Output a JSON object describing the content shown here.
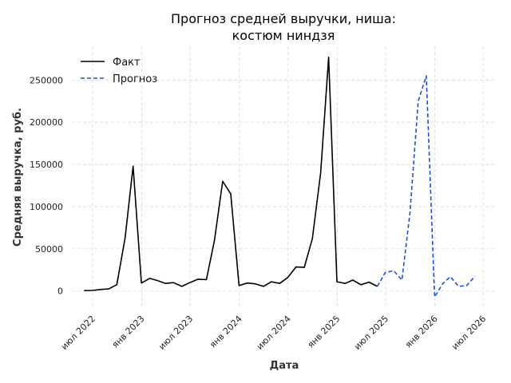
{
  "chart_data": {
    "type": "line",
    "title_lines": [
      "Прогноз средней выручки, ниша:",
      "костюм ниндзя"
    ],
    "xlabel": "Дата",
    "ylabel": "Средняя выручка, руб.",
    "x_range": [
      "2022-04-15",
      "2026-08-20"
    ],
    "ylim": [
      -22000,
      290000
    ],
    "yticks": [
      0,
      50000,
      100000,
      150000,
      200000,
      250000
    ],
    "ytick_labels": [
      "0",
      "50000",
      "100000",
      "150000",
      "200000",
      "250000"
    ],
    "xticks": [
      {
        "date": "2022-07-01",
        "label": "июл 2022"
      },
      {
        "date": "2023-01-01",
        "label": "янв 2023"
      },
      {
        "date": "2023-07-01",
        "label": "июл 2023"
      },
      {
        "date": "2024-01-01",
        "label": "янв 2024"
      },
      {
        "date": "2024-07-01",
        "label": "июл 2024"
      },
      {
        "date": "2025-01-01",
        "label": "янв 2025"
      },
      {
        "date": "2025-07-01",
        "label": "июл 2025"
      },
      {
        "date": "2026-01-01",
        "label": "янв 2026"
      },
      {
        "date": "2026-07-01",
        "label": "июл 2026"
      }
    ],
    "grid": true,
    "legend_position": "top-left",
    "series": [
      {
        "name": "Факт",
        "color": "#000000",
        "style": "solid",
        "points": [
          [
            "2022-05-31",
            500
          ],
          [
            "2022-06-30",
            700
          ],
          [
            "2022-07-31",
            1800
          ],
          [
            "2022-08-31",
            2500
          ],
          [
            "2022-09-30",
            7500
          ],
          [
            "2022-10-31",
            63000
          ],
          [
            "2022-11-30",
            148000
          ],
          [
            "2022-12-31",
            9500
          ],
          [
            "2023-01-31",
            15000
          ],
          [
            "2023-02-28",
            12500
          ],
          [
            "2023-03-31",
            9000
          ],
          [
            "2023-04-30",
            10000
          ],
          [
            "2023-05-31",
            5500
          ],
          [
            "2023-06-30",
            10000
          ],
          [
            "2023-07-31",
            14000
          ],
          [
            "2023-08-31",
            13500
          ],
          [
            "2023-09-30",
            60000
          ],
          [
            "2023-10-31",
            130000
          ],
          [
            "2023-11-30",
            115000
          ],
          [
            "2023-12-31",
            6500
          ],
          [
            "2024-01-31",
            9500
          ],
          [
            "2024-02-29",
            8500
          ],
          [
            "2024-03-31",
            5500
          ],
          [
            "2024-04-30",
            11000
          ],
          [
            "2024-05-31",
            9000
          ],
          [
            "2024-06-30",
            16000
          ],
          [
            "2024-07-31",
            28500
          ],
          [
            "2024-08-31",
            28000
          ],
          [
            "2024-09-30",
            62000
          ],
          [
            "2024-10-31",
            140000
          ],
          [
            "2024-11-30",
            277000
          ],
          [
            "2024-12-31",
            11000
          ],
          [
            "2025-01-31",
            9000
          ],
          [
            "2025-02-28",
            13000
          ],
          [
            "2025-03-31",
            7500
          ],
          [
            "2025-04-30",
            10500
          ],
          [
            "2025-05-31",
            5500
          ]
        ]
      },
      {
        "name": "Прогноз",
        "color": "#1f4fd8",
        "style": "dashed",
        "points": [
          [
            "2025-05-31",
            5500
          ],
          [
            "2025-06-30",
            22000
          ],
          [
            "2025-07-31",
            24000
          ],
          [
            "2025-08-31",
            13000
          ],
          [
            "2025-09-30",
            93000
          ],
          [
            "2025-10-31",
            225000
          ],
          [
            "2025-11-30",
            255000
          ],
          [
            "2025-12-31",
            -7000
          ],
          [
            "2026-01-31",
            9000
          ],
          [
            "2026-02-28",
            17000
          ],
          [
            "2026-03-31",
            5500
          ],
          [
            "2026-04-30",
            6500
          ],
          [
            "2026-05-31",
            17500
          ]
        ]
      }
    ]
  }
}
